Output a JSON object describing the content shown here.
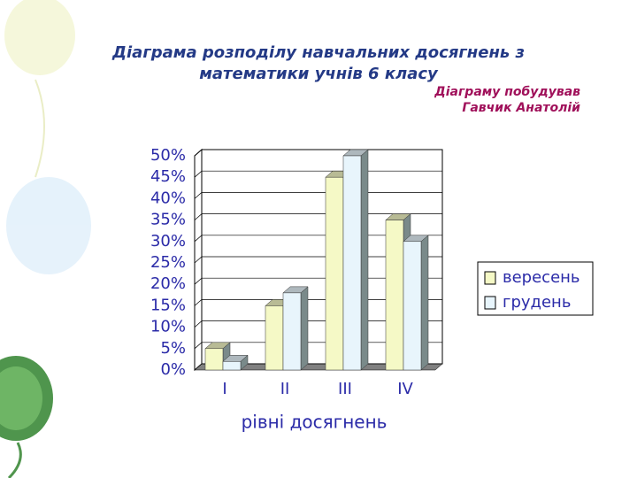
{
  "chart_data": {
    "type": "bar",
    "title": [
      "Діаграма розподілу навчальних  досягнень з",
      "математики учнів 6 класу"
    ],
    "subtitle": [
      "Діаграму побудував",
      "Гавчик Анатолій"
    ],
    "x_label": "рівні досягнень",
    "categories": [
      "I",
      "II",
      "III",
      "IV"
    ],
    "series": [
      {
        "name": "вересень",
        "color": "#f5f9c6",
        "values": [
          5,
          15,
          45,
          35
        ]
      },
      {
        "name": "грудень",
        "color": "#e8f5fc",
        "values": [
          2,
          18,
          50,
          30
        ]
      }
    ],
    "ylim": [
      0,
      50
    ],
    "yticks": [
      {
        "value": 0,
        "label": "0%"
      },
      {
        "value": 5,
        "label": "5%"
      },
      {
        "value": 10,
        "label": "10%"
      },
      {
        "value": 15,
        "label": "15%"
      },
      {
        "value": 20,
        "label": "20%"
      },
      {
        "value": 25,
        "label": "25%"
      },
      {
        "value": 30,
        "label": "30%"
      },
      {
        "value": 35,
        "label": "35%"
      },
      {
        "value": 40,
        "label": "40%"
      },
      {
        "value": 45,
        "label": "45%"
      },
      {
        "value": 50,
        "label": "50%"
      }
    ],
    "grid": true,
    "legend": "right"
  }
}
